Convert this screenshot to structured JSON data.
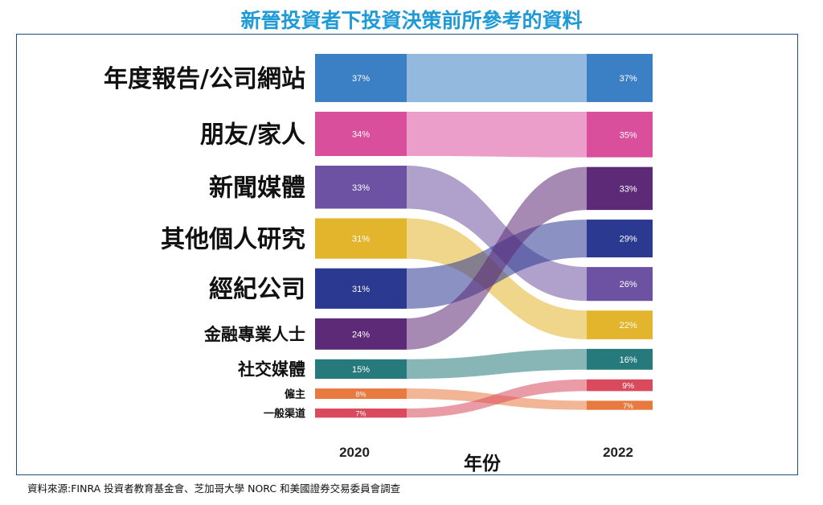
{
  "title": "新晉投資者下投資決策前所參考的資料",
  "source": "資料來源:FINRA 投資者教育基金會、芝加哥大學 NORC 和美國證券交易委員會調查",
  "chart_data": {
    "type": "sankey",
    "title": "新晉投資者下投資決策前所參考的資料",
    "xlabel": "年份",
    "years": [
      "2020",
      "2022"
    ],
    "series": [
      {
        "name": "年度報告/公司網站",
        "color": "#3b7fc4",
        "values": [
          37,
          37
        ],
        "labels": [
          "37%",
          "37%"
        ]
      },
      {
        "name": "朋友/家人",
        "color": "#d94f9c",
        "values": [
          34,
          35
        ],
        "labels": [
          "34%",
          "35%"
        ]
      },
      {
        "name": "新聞媒體",
        "color": "#6d52a3",
        "values": [
          33,
          26
        ],
        "labels": [
          "33%",
          "26%"
        ]
      },
      {
        "name": "其他個人研究",
        "color": "#e3b52c",
        "values": [
          31,
          22
        ],
        "labels": [
          "31%",
          "22%"
        ]
      },
      {
        "name": "經紀公司",
        "color": "#2b3991",
        "values": [
          31,
          29
        ],
        "labels": [
          "31%",
          "29%"
        ]
      },
      {
        "name": "金融專業人士",
        "color": "#5c2a77",
        "values": [
          24,
          33
        ],
        "labels": [
          "24%",
          "33%"
        ]
      },
      {
        "name": "社交媒體",
        "color": "#267a7c",
        "values": [
          15,
          16
        ],
        "labels": [
          "15%",
          "16%"
        ]
      },
      {
        "name": "僱主",
        "color": "#e8793f",
        "values": [
          8,
          7
        ],
        "labels": [
          "8%",
          "7%"
        ]
      },
      {
        "name": "一般渠道",
        "color": "#d94a5c",
        "values": [
          7,
          9
        ],
        "labels": [
          "7%",
          "9%"
        ]
      }
    ]
  }
}
